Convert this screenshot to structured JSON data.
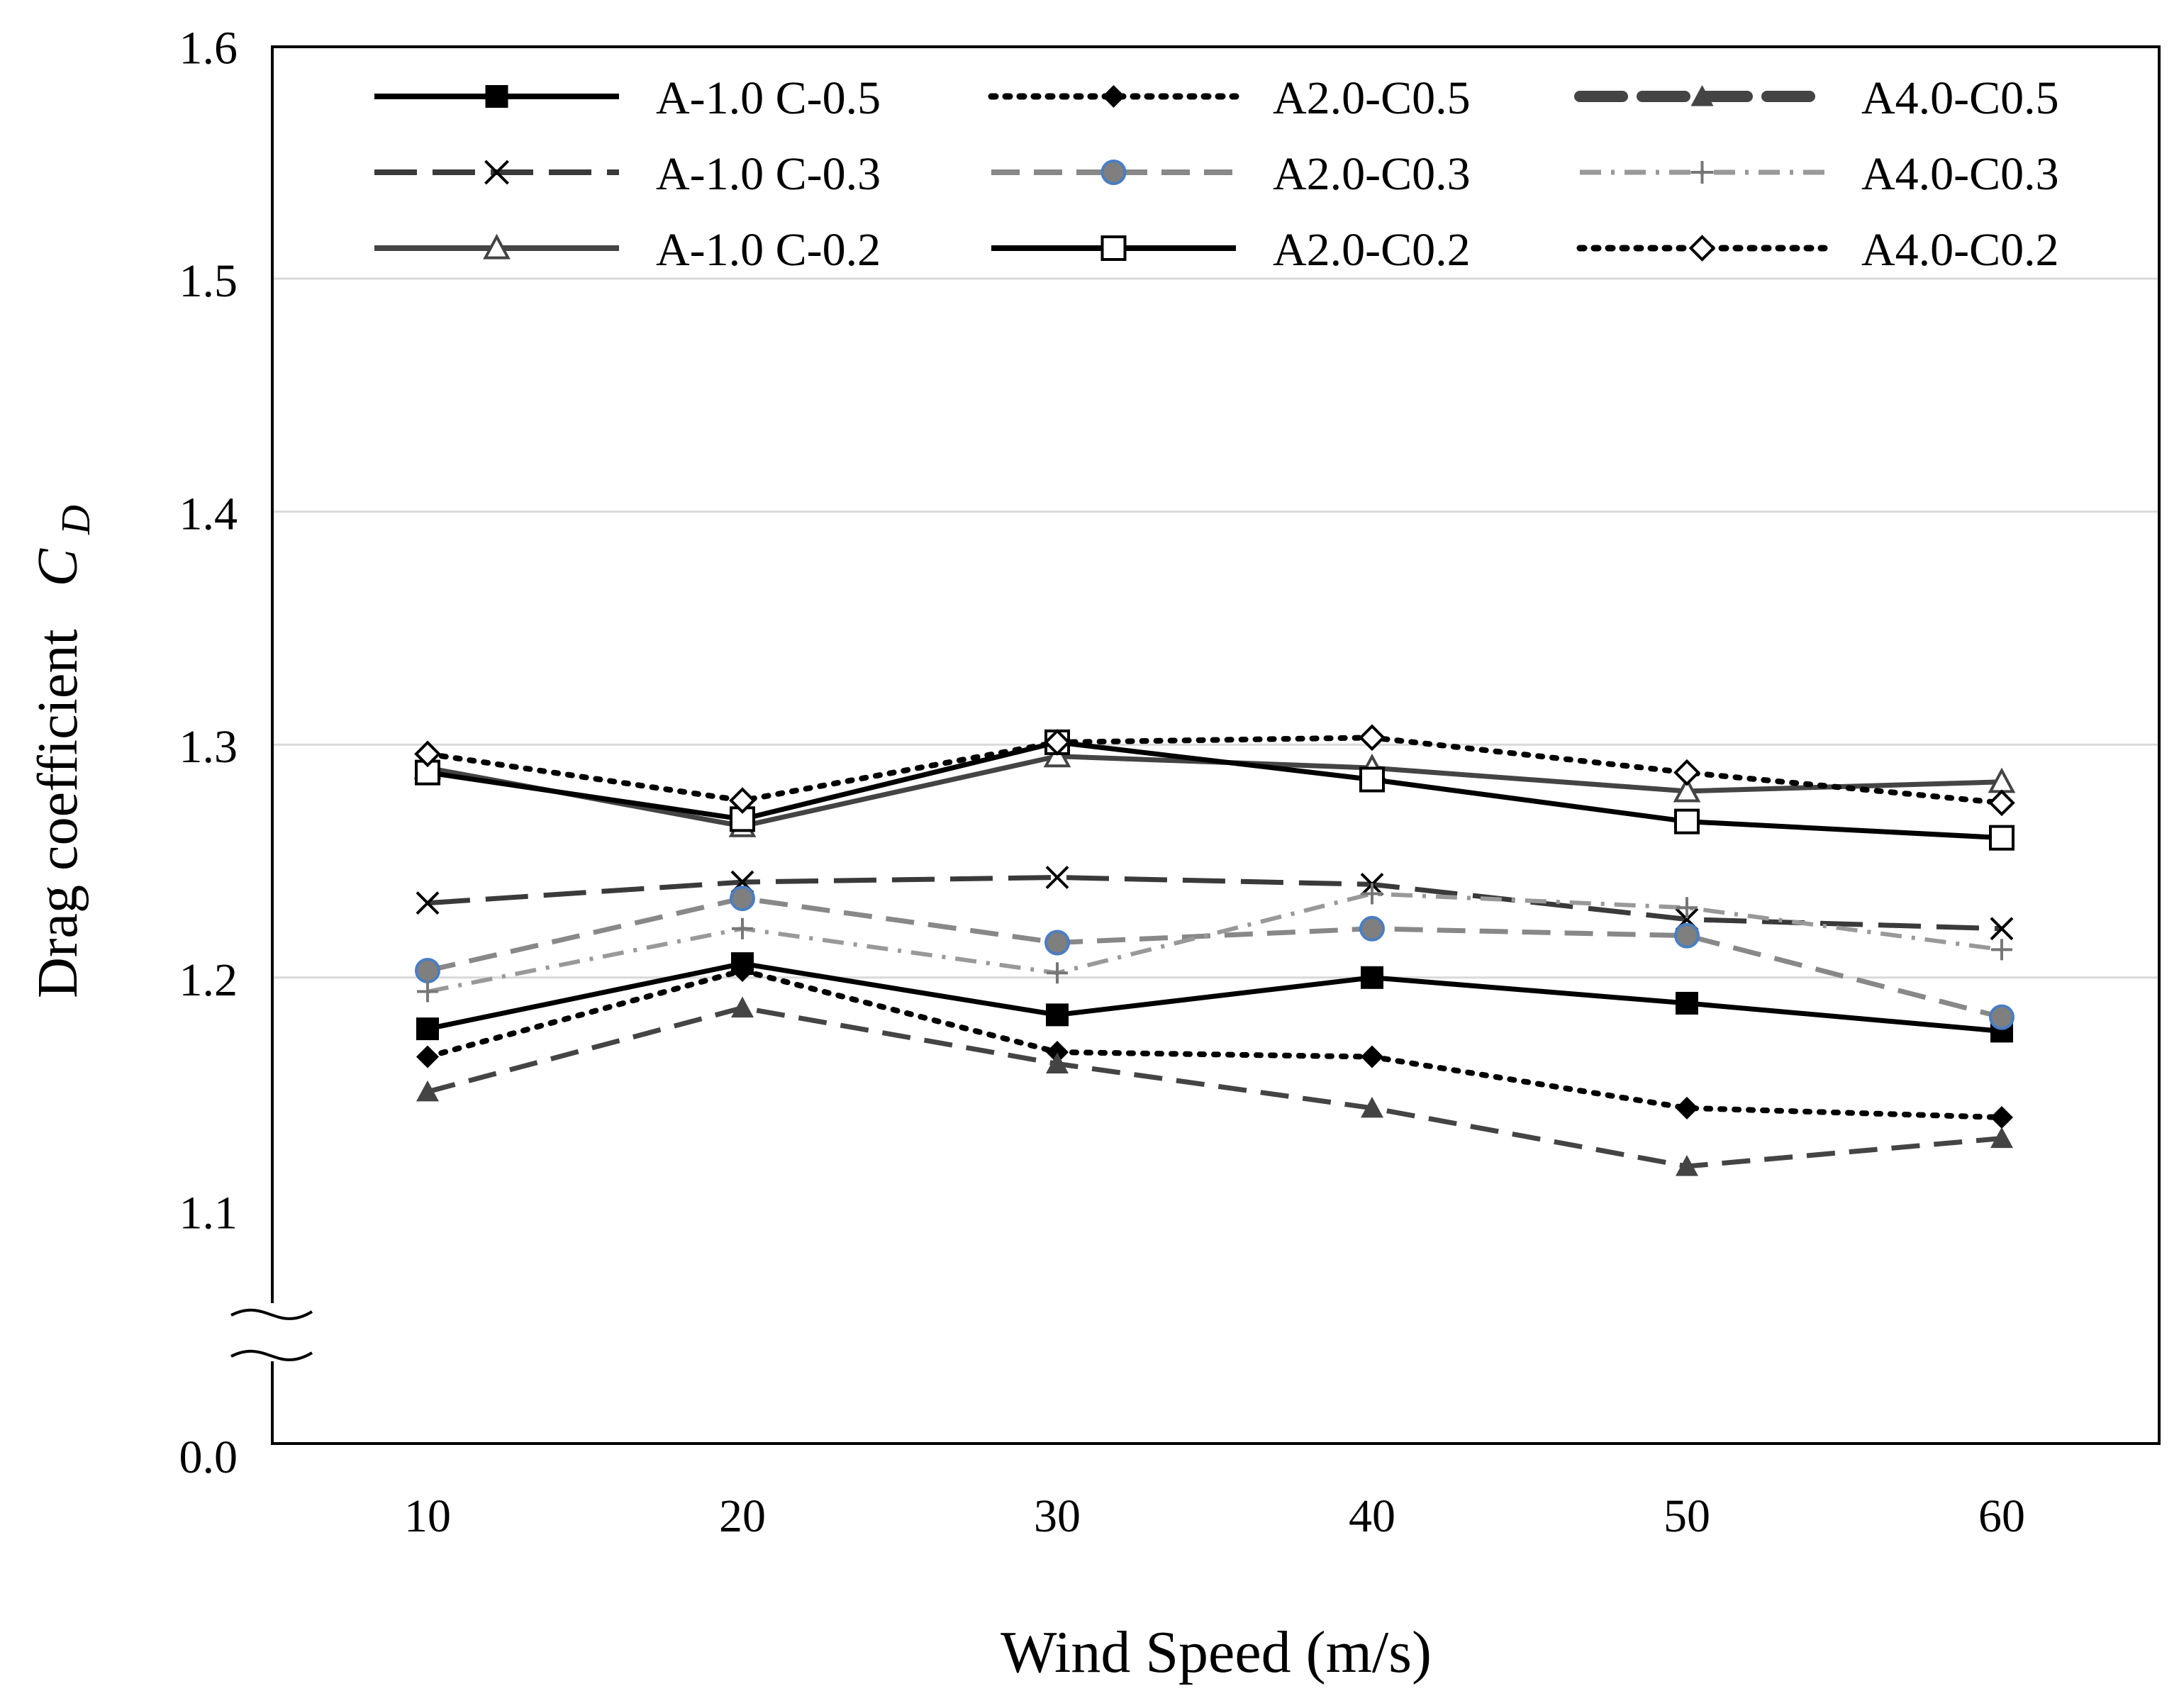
{
  "chart_data": {
    "type": "line",
    "title": "",
    "xlabel": "Wind Speed (m/s)",
    "ylabel": {
      "main": "Drag coefficient",
      "symbol": "C",
      "subscript": "D"
    },
    "x": [
      10,
      20,
      30,
      40,
      50,
      60
    ],
    "x_tick_labels": [
      "10",
      "20",
      "30",
      "40",
      "50",
      "60"
    ],
    "y_tick_labels": [
      "0.0",
      "1.1",
      "1.2",
      "1.3",
      "1.4",
      "1.5",
      "1.6"
    ],
    "ylim": [
      1.04,
      1.6
    ],
    "y_axis_break": {
      "bottom_label": "0.0",
      "break_between": [
        0.0,
        1.1
      ]
    },
    "grid": true,
    "legend": {
      "placement": "top",
      "columns": 3
    },
    "series": [
      {
        "name": "A-1.0 C-0.5",
        "values": [
          1.178,
          1.206,
          1.184,
          1.2,
          1.189,
          1.177
        ],
        "color": "#000000",
        "dash": "solid",
        "marker": "square-filled"
      },
      {
        "name": "A-1.0 C-0.3",
        "values": [
          1.232,
          1.241,
          1.243,
          1.24,
          1.225,
          1.221
        ],
        "color": "#3a3a3a",
        "dash": "long-dash",
        "marker": "x"
      },
      {
        "name": "A-1.0 C-0.2",
        "values": [
          1.29,
          1.265,
          1.295,
          1.29,
          1.28,
          1.284
        ],
        "color": "#444444",
        "dash": "solid",
        "marker": "triangle-open"
      },
      {
        "name": "A2.0-C0.5",
        "values": [
          1.166,
          1.203,
          1.168,
          1.166,
          1.144,
          1.14
        ],
        "color": "#000000",
        "dash": "dotted",
        "marker": "diamond-filled"
      },
      {
        "name": "A2.0-C0.3",
        "values": [
          1.203,
          1.234,
          1.215,
          1.221,
          1.218,
          1.183
        ],
        "color": "#888888",
        "dash": "dash",
        "marker": "circle-filled"
      },
      {
        "name": "A2.0-C0.2",
        "values": [
          1.288,
          1.268,
          1.301,
          1.285,
          1.267,
          1.26
        ],
        "color": "#000000",
        "dash": "solid",
        "marker": "square-open"
      },
      {
        "name": "A4.0-C0.5",
        "values": [
          1.151,
          1.187,
          1.163,
          1.144,
          1.119,
          1.131
        ],
        "color": "#444444",
        "dash": "dash",
        "marker": "triangle-filled"
      },
      {
        "name": "A4.0-C0.3",
        "values": [
          1.194,
          1.221,
          1.202,
          1.236,
          1.23,
          1.212
        ],
        "color": "#999999",
        "dash": "dash-dot",
        "marker": "plus"
      },
      {
        "name": "A4.0-C0.2",
        "values": [
          1.296,
          1.276,
          1.301,
          1.303,
          1.288,
          1.275
        ],
        "color": "#000000",
        "dash": "dotted",
        "marker": "diamond-open"
      }
    ]
  }
}
